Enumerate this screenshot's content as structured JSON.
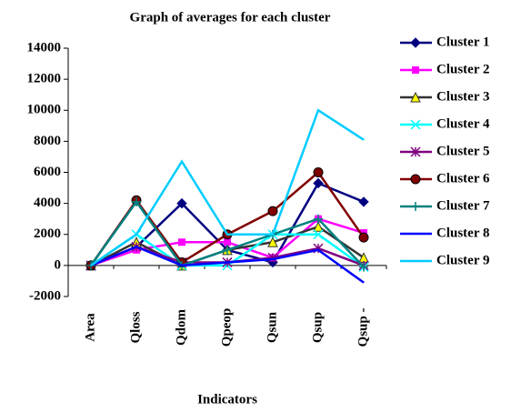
{
  "chart_data": {
    "type": "line",
    "title": "Graph of averages for each cluster",
    "x_label": "Indicators",
    "categories": [
      "Area",
      "Qloss",
      "Qdom",
      "Qpeop",
      "Qsun",
      "Qsup",
      "Qsup -"
    ],
    "ylim": [
      -2000,
      14000
    ],
    "yticks": [
      -2000,
      0,
      2000,
      4000,
      6000,
      8000,
      10000,
      12000,
      14000
    ],
    "series": [
      {
        "name": "Cluster 1",
        "color": "#000080",
        "marker": "diamond",
        "values": [
          0,
          1200,
          4000,
          1000,
          200,
          5300,
          4100
        ]
      },
      {
        "name": "Cluster 2",
        "color": "#ff00ff",
        "marker": "square",
        "values": [
          0,
          1000,
          1500,
          1500,
          500,
          3000,
          2100
        ]
      },
      {
        "name": "Cluster 3",
        "color": "#333333",
        "marker": "triangle",
        "values": [
          0,
          1500,
          0,
          1000,
          1500,
          2500,
          500
        ]
      },
      {
        "name": "Cluster 4",
        "color": "#00ffff",
        "marker": "x",
        "values": [
          0,
          2000,
          0,
          0,
          2000,
          2000,
          -100
        ]
      },
      {
        "name": "Cluster 5",
        "color": "#800080",
        "marker": "star",
        "values": [
          0,
          1200,
          200,
          200,
          500,
          1100,
          0
        ]
      },
      {
        "name": "Cluster 6",
        "color": "#800000",
        "marker": "circle",
        "values": [
          0,
          4200,
          200,
          2000,
          3500,
          6000,
          1800
        ]
      },
      {
        "name": "Cluster 7",
        "color": "#008080",
        "marker": "plus",
        "values": [
          0,
          4100,
          0,
          1000,
          2000,
          3000,
          -100
        ]
      },
      {
        "name": "Cluster 8",
        "color": "#0000ff",
        "marker": "none",
        "values": [
          0,
          1200,
          0,
          200,
          400,
          1000,
          -1100
        ]
      },
      {
        "name": "Cluster 9",
        "color": "#00ccff",
        "marker": "none",
        "values": [
          0,
          2000,
          6700,
          2000,
          2000,
          10000,
          8100
        ]
      }
    ]
  }
}
